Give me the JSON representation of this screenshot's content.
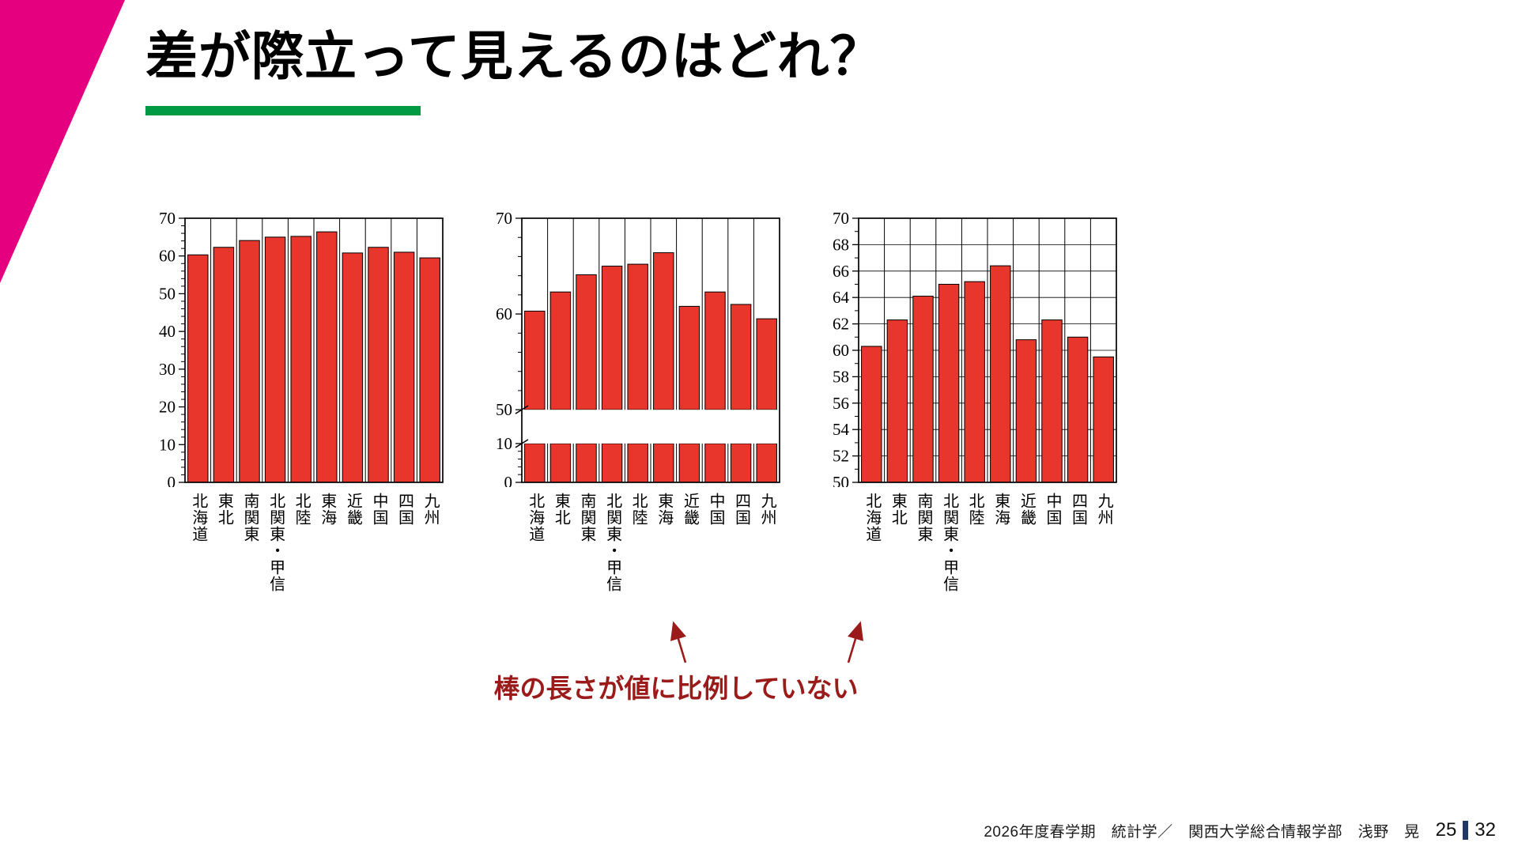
{
  "slide": {
    "title": "差が際立って見えるのはどれ？"
  },
  "annotation": {
    "text": "棒の長さが値に比例していない"
  },
  "footer": {
    "course": "2026年度春学期　統計学／　関西大学総合情報学部　浅野　晃",
    "page": "25",
    "total": "32"
  },
  "colors": {
    "bar_red": "#e8362d",
    "corner_pink": "#e4007f",
    "underline_green": "#009944",
    "annotation_red": "#9b1b1b",
    "page_bar_navy": "#1f3864"
  },
  "chart_data": [
    {
      "type": "bar",
      "title": "",
      "xlabel": "",
      "ylabel": "",
      "categories": [
        "北海道",
        "東北",
        "南関東",
        "北関東・甲信",
        "北陸",
        "東海",
        "近畿",
        "中国",
        "四国",
        "九州"
      ],
      "values": [
        60.3,
        62.3,
        64.1,
        65.0,
        65.2,
        66.4,
        60.8,
        62.3,
        61.0,
        59.5
      ],
      "ylim": [
        0,
        70
      ],
      "segments": [
        {
          "from": 0,
          "to": 70,
          "weight": 1
        }
      ],
      "major_tick": 10,
      "minor_tick": 2,
      "hgrid": false,
      "axis_break": false,
      "grid": "vertical-column-lines",
      "legend": "none"
    },
    {
      "type": "bar",
      "title": "",
      "xlabel": "",
      "ylabel": "",
      "categories": [
        "北海道",
        "東北",
        "南関東",
        "北関東・甲信",
        "北陸",
        "東海",
        "近畿",
        "中国",
        "四国",
        "九州"
      ],
      "values": [
        60.3,
        62.3,
        64.1,
        65.0,
        65.2,
        66.4,
        60.8,
        62.3,
        61.0,
        59.5
      ],
      "ylim": [
        0,
        70
      ],
      "segments": [
        {
          "from": 0,
          "to": 10,
          "weight": 0.147
        },
        {
          "gap": true,
          "weight": 0.128
        },
        {
          "from": 50,
          "to": 70,
          "weight": 0.725
        }
      ],
      "major_tick": 10,
      "minor_tick": 2,
      "hgrid": false,
      "axis_break": true,
      "grid": "vertical-column-lines",
      "legend": "none"
    },
    {
      "type": "bar",
      "title": "",
      "xlabel": "",
      "ylabel": "",
      "categories": [
        "北海道",
        "東北",
        "南関東",
        "北関東・甲信",
        "北陸",
        "東海",
        "近畿",
        "中国",
        "四国",
        "九州"
      ],
      "values": [
        60.3,
        62.3,
        64.1,
        65.0,
        65.2,
        66.4,
        60.8,
        62.3,
        61.0,
        59.5
      ],
      "ylim": [
        50,
        70
      ],
      "segments": [
        {
          "from": 50,
          "to": 70,
          "weight": 1
        }
      ],
      "major_tick": 2,
      "minor_tick": 1,
      "hgrid": true,
      "axis_break": false,
      "grid": "vertical-column-lines-and-horizontal-gridlines",
      "legend": "none"
    }
  ]
}
